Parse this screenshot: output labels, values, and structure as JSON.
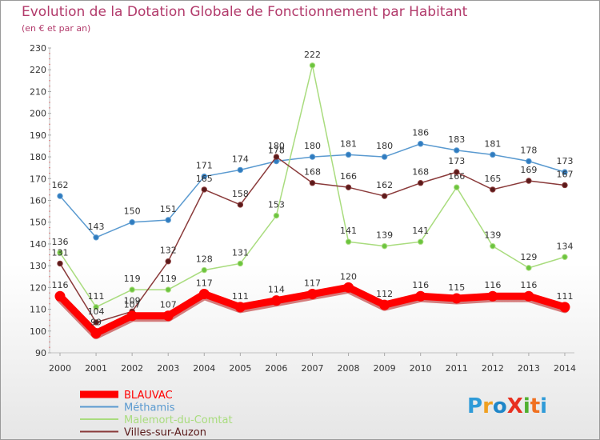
{
  "chart_data": {
    "type": "line",
    "title": "Evolution de la Dotation Globale de Fonctionnement par Habitant",
    "subtitle": "(en € et par an)",
    "x": [
      "2000",
      "2001",
      "2002",
      "2003",
      "2004",
      "2005",
      "2006",
      "2007",
      "2008",
      "2009",
      "2010",
      "2011",
      "2012",
      "2013",
      "2014"
    ],
    "ylim": [
      90,
      230
    ],
    "yticks": [
      90,
      100,
      110,
      120,
      130,
      140,
      150,
      160,
      170,
      180,
      190,
      200,
      210,
      220,
      230
    ],
    "series": [
      {
        "name": "Méthamis",
        "color": "#5a9ad0",
        "dot": "#2f7bbf",
        "values": [
          162,
          143,
          150,
          151,
          171,
          174,
          178,
          180,
          181,
          180,
          186,
          183,
          181,
          178,
          173
        ],
        "labels": [
          "162",
          "143",
          "150",
          "151",
          "171",
          "174",
          "178",
          "180",
          "181",
          "180",
          "186",
          "183",
          "181",
          "178",
          "173"
        ]
      },
      {
        "name": "Malemort-du-Comtat",
        "color": "#a9dc7e",
        "dot": "#6cc43f",
        "values": [
          136,
          111,
          119,
          119,
          128,
          131,
          153,
          222,
          141,
          139,
          141,
          166,
          139,
          129,
          134
        ],
        "labels": [
          "136",
          "111",
          "119",
          "119",
          "128",
          "131",
          "153",
          "222",
          "141",
          "139",
          "141",
          "166",
          "139",
          "129",
          "134"
        ]
      },
      {
        "name": "Villes-sur-Auzon",
        "color": "#8a3a3a",
        "dot": "#5a1a1a",
        "values": [
          131,
          104,
          109,
          132,
          165,
          158,
          180,
          168,
          166,
          162,
          168,
          173,
          165,
          169,
          167
        ],
        "labels": [
          "131",
          "104",
          "109",
          "132",
          "165",
          "158",
          "180",
          "168",
          "166",
          "162",
          "168",
          "173",
          "165",
          "169",
          "167"
        ]
      },
      {
        "name": "BLAUVAC",
        "color": "#ff0000",
        "dot": "#ff0000",
        "values": [
          116,
          99,
          107,
          107,
          117,
          111,
          114,
          117,
          120,
          112,
          116,
          115,
          116,
          116,
          111
        ],
        "labels": [
          "116",
          "99",
          "107",
          "107",
          "117",
          "111",
          "114",
          "117",
          "120",
          "112",
          "116",
          "115",
          "116",
          "116",
          "111"
        ]
      }
    ],
    "legend_order": [
      "BLAUVAC",
      "Méthamis",
      "Malemort-du-Comtat",
      "Villes-sur-Auzon"
    ],
    "legend_position": "bottom-left",
    "grid": false
  },
  "logo": {
    "text": "ProXiti"
  }
}
